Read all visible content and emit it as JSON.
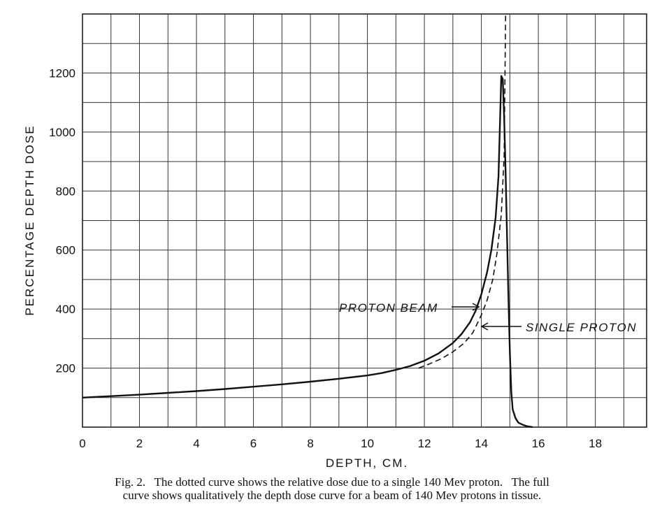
{
  "chart_data": {
    "type": "line",
    "xlabel": "DEPTH, CM.",
    "ylabel": "PERCENTAGE DEPTH DOSE",
    "xlim": [
      0,
      19.8
    ],
    "ylim": [
      0,
      1400
    ],
    "x_ticks": [
      "0",
      "2",
      "4",
      "6",
      "8",
      "10",
      "12",
      "14",
      "16",
      "18"
    ],
    "y_ticks": [
      "200",
      "400",
      "600",
      "800",
      "1000",
      "1200"
    ],
    "grid": true,
    "series": [
      {
        "name": "PROTON BEAM",
        "style": "solid",
        "x": [
          0,
          1,
          2,
          3,
          4,
          5,
          6,
          7,
          8,
          9,
          10,
          10.5,
          11,
          11.5,
          12,
          12.5,
          13,
          13.3,
          13.6,
          13.8,
          14.0,
          14.2,
          14.35,
          14.5,
          14.6,
          14.65,
          14.7,
          14.75,
          14.8,
          14.85,
          14.9,
          14.95,
          15.0,
          15.05,
          15.1,
          15.2,
          15.3,
          15.45,
          15.6,
          15.8
        ],
        "values": [
          100,
          105,
          110,
          116,
          122,
          129,
          137,
          145,
          154,
          164,
          175,
          183,
          194,
          207,
          225,
          250,
          285,
          315,
          355,
          395,
          450,
          525,
          600,
          710,
          850,
          1020,
          1190,
          1180,
          1050,
          860,
          650,
          440,
          250,
          120,
          60,
          30,
          15,
          8,
          3,
          0
        ]
      },
      {
        "name": "SINGLE PROTON",
        "style": "dashed",
        "x": [
          11.8,
          12.2,
          12.6,
          13.0,
          13.4,
          13.7,
          14.0,
          14.2,
          14.4,
          14.55,
          14.7,
          14.8,
          14.85
        ],
        "values": [
          200,
          215,
          232,
          255,
          285,
          320,
          380,
          430,
          500,
          590,
          720,
          920,
          1400
        ]
      }
    ],
    "annotations": [
      "PROTON BEAM",
      "SINGLE PROTON"
    ]
  },
  "caption": {
    "line1": "Fig. 2.   The dotted curve shows the relative dose due to a single 140 Mev proton.   The full",
    "line2": "curve shows qualitatively the depth dose curve for a beam of 140 Mev protons in tissue."
  }
}
